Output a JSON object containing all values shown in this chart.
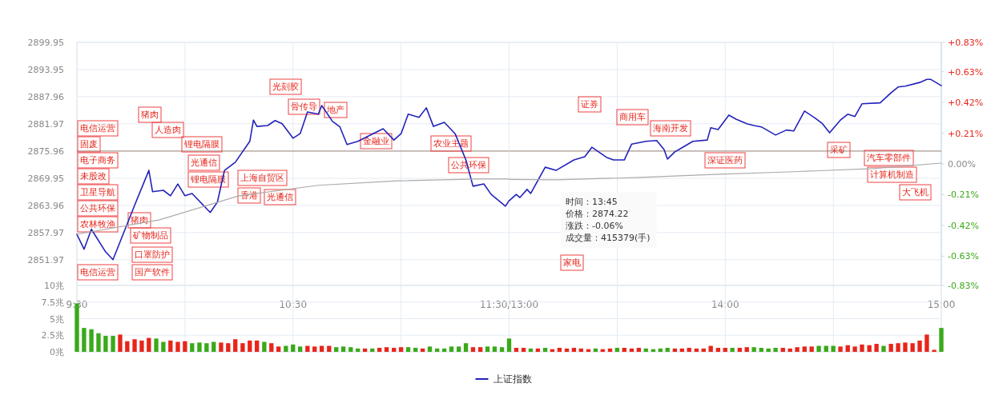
{
  "chart_data": [
    {
      "type": "line",
      "xlim": [
        9.5,
        11.5
      ],
      "xticks": [
        {
          "value": 9.5,
          "label": "9:30"
        },
        {
          "value": 10,
          "label": null
        },
        {
          "value": 10.5,
          "label": "10:30"
        },
        {
          "value": 11,
          "label": null
        },
        {
          "value": 11.5,
          "label": "11:30/13:00"
        }
      ],
      "ylim": [
        2846.3,
        2899.95
      ],
      "yticks": [
        2851.97,
        2857.97,
        2863.96,
        2869.95,
        2875.96,
        2881.97,
        2887.96,
        2893.95,
        2899.95
      ],
      "grid": true,
      "legend": "bottom",
      "series": [
        {
          "name": "上证指数",
          "color": "#2222bb",
          "x": [
            9.5,
            9.533,
            9.567,
            9.633,
            9.667,
            9.767,
            9.833,
            9.85,
            9.9,
            9.933,
            9.967,
            10,
            10.033,
            10.117,
            10.15,
            10.183,
            10.233,
            10.3,
            10.317,
            10.333,
            10.383,
            10.417,
            10.45,
            10.5,
            10.533,
            10.567,
            10.617,
            10.633,
            10.683,
            10.717,
            10.75,
            10.8,
            10.85,
            10.917,
            10.967,
            11,
            11.033,
            11.083,
            11.117,
            11.15,
            11.2,
            11.25,
            11.3,
            11.333,
            11.383,
            11.417,
            11.483,
            11.5
          ],
          "values": [
            2857.6,
            2854.3,
            2858.7,
            2853.7,
            2852.0,
            2864.0,
            2871.7,
            2867.0,
            2867.3,
            2866.1,
            2868.7,
            2866.1,
            2866.6,
            2862.4,
            2864.7,
            2871.7,
            2873.5,
            2878.1,
            2882.8,
            2881.4,
            2881.6,
            2882.7,
            2882.0,
            2878.8,
            2879.8,
            2884.6,
            2884.1,
            2886.0,
            2882.5,
            2881.3,
            2877.4,
            2878.1,
            2879.3,
            2880.9,
            2878.4,
            2879.8,
            2884.1,
            2883.4,
            2885.5,
            2881.4,
            2882.3,
            2879.8,
            2874.0,
            2868.2,
            2868.7,
            2866.4,
            2863.8,
            2865.0
          ]
        },
        {
          "color": "#aaaaaa",
          "x": [
            9.5,
            9.883,
            10.25,
            10.617,
            10.983,
            11.35,
            11.5
          ],
          "values": [
            2857.6,
            2860.8,
            2866.1,
            2868.4,
            2869.4,
            2869.8,
            2869.8
          ]
        }
      ],
      "ref_lines": [
        {
          "axis": "y",
          "value": 2875.96,
          "color": "#a08878"
        }
      ],
      "annotations": [
        "电信运营",
        "固废",
        "电子商务",
        "未股改",
        "卫星导航",
        "公共环保",
        "农林牧渔",
        "口罩防护",
        "国产软件",
        "电信运营",
        "猪肉",
        "人造肉",
        "锂电隔膜",
        "光通信",
        "锂电隔膜",
        "猪肉",
        "矿物制品",
        "上海自贸区",
        "香港",
        "光通信",
        "光刻胶",
        "骨传导",
        "地产",
        "金融业",
        "农业主题",
        "公共环保"
      ]
    },
    {
      "type": "line",
      "xlim": [
        13,
        15
      ],
      "tick_labels": "x",
      "xticks": [
        {
          "value": 13,
          "label": null
        },
        {
          "value": 13.5,
          "label": null
        },
        {
          "value": 14,
          "label": "14:00"
        },
        {
          "value": 14.5,
          "label": null
        },
        {
          "value": 15,
          "label": "15:00"
        }
      ],
      "ylim": [
        2846.3,
        2899.95
      ],
      "yticks": [
        2851.97,
        2857.97,
        2863.96,
        2869.95,
        2875.96,
        2881.97,
        2887.96,
        2893.95,
        2899.95
      ],
      "y2lim": [
        -0.83,
        0.83
      ],
      "y2ticks": [
        {
          "value": -0.83,
          "label": "-0.83%"
        },
        {
          "value": -0.63,
          "label": "-0.63%"
        },
        {
          "value": -0.42,
          "label": "-0.42%"
        },
        {
          "value": -0.21,
          "label": "-0.21%"
        },
        {
          "value": 0,
          "label": "0.00%"
        },
        {
          "value": 0.21,
          "label": "+0.21%"
        },
        {
          "value": 0.42,
          "label": "+0.42%"
        },
        {
          "value": 0.63,
          "label": "+0.63%"
        },
        {
          "value": 0.83,
          "label": "+0.83%"
        }
      ],
      "grid": true,
      "series": [
        {
          "color": "#2222bb",
          "x": [
            13,
            13.033,
            13.05,
            13.083,
            13.1,
            13.167,
            13.217,
            13.3,
            13.35,
            13.383,
            13.45,
            13.483,
            13.533,
            13.567,
            13.633,
            13.683,
            13.717,
            13.733,
            13.767,
            13.8,
            13.85,
            13.917,
            13.933,
            13.967,
            14.017,
            14.05,
            14.1,
            14.133,
            14.167,
            14.233,
            14.283,
            14.317,
            14.367,
            14.417,
            14.45,
            14.483,
            14.533,
            14.567,
            14.6,
            14.633,
            14.717,
            14.767,
            14.8,
            14.833,
            14.9,
            14.933,
            14.95,
            15
          ],
          "values": [
            2865.0,
            2866.4,
            2865.7,
            2867.5,
            2866.6,
            2872.4,
            2871.7,
            2874.0,
            2874.7,
            2876.8,
            2874.6,
            2874.0,
            2874.0,
            2877.5,
            2878.1,
            2878.3,
            2876.3,
            2874.2,
            2875.8,
            2876.7,
            2878.1,
            2878.4,
            2881.1,
            2880.7,
            2883.9,
            2883.0,
            2882.0,
            2881.6,
            2881.3,
            2879.5,
            2880.6,
            2880.4,
            2884.8,
            2883.2,
            2882.0,
            2880.0,
            2882.8,
            2884.1,
            2883.6,
            2886.4,
            2886.6,
            2888.8,
            2890.1,
            2890.3,
            2891.1,
            2891.8,
            2891.8,
            2890.4
          ]
        },
        {
          "color": "#aaaaaa",
          "x": [
            13,
            13.217,
            13.583,
            13.95,
            14.317,
            14.683,
            15
          ],
          "values": [
            2869.7,
            2869.6,
            2870.1,
            2870.8,
            2871.4,
            2872.1,
            2873.3
          ]
        }
      ],
      "ref_lines": [
        {
          "axis": "y",
          "value": 2875.96,
          "color": "#a08878"
        }
      ],
      "annotations": [
        "家电",
        "证券",
        "商用车",
        "海南开发",
        "深证医药",
        "采矿",
        "汽车零部件",
        "计算机制造",
        "大飞机",
        "时间：13:45",
        "价格：2874.22",
        "涨跌：-0.06%",
        "成交量：415379(手)"
      ]
    },
    {
      "type": "bar",
      "xlim": [
        9.5,
        11.5
      ],
      "tick_labels": "y",
      "grid": true,
      "xticks": [
        {
          "value": 9.5,
          "label": null
        },
        {
          "value": 10,
          "label": null
        },
        {
          "value": 10.5,
          "label": null
        },
        {
          "value": 11,
          "label": null
        },
        {
          "value": 11.5,
          "label": null
        }
      ],
      "ylim": [
        0,
        10
      ],
      "yticks": [
        {
          "value": 0,
          "label": "0兆"
        },
        {
          "value": 2.5,
          "label": "2.5兆"
        },
        {
          "value": 5,
          "label": "5兆"
        },
        {
          "value": 7.5,
          "label": "7.5兆"
        },
        {
          "value": 10,
          "label": "10兆"
        }
      ],
      "x": [
        9.5,
        9.533,
        9.567,
        9.6,
        9.633,
        9.667,
        9.7,
        9.733,
        9.767,
        9.8,
        9.833,
        9.867,
        9.9,
        9.933,
        9.967,
        10,
        10.033,
        10.067,
        10.1,
        10.133,
        10.167,
        10.2,
        10.233,
        10.267,
        10.3,
        10.333,
        10.367,
        10.4,
        10.433,
        10.467,
        10.5,
        10.533,
        10.567,
        10.6,
        10.633,
        10.667,
        10.7,
        10.733,
        10.767,
        10.8,
        10.833,
        10.867,
        10.9,
        10.933,
        10.967,
        11,
        11.033,
        11.067,
        11.1,
        11.133,
        11.167,
        11.2,
        11.233,
        11.267,
        11.3,
        11.333,
        11.367,
        11.4,
        11.433,
        11.467
      ],
      "values": [
        7.3,
        3.6,
        3.4,
        2.8,
        2.4,
        2.4,
        2.6,
        1.6,
        1.9,
        1.7,
        2.1,
        2.0,
        1.5,
        1.7,
        1.5,
        1.6,
        1.3,
        1.4,
        1.3,
        1.5,
        1.4,
        1.3,
        1.9,
        1.3,
        1.7,
        1.7,
        1.5,
        1.3,
        0.8,
        0.9,
        1.1,
        0.8,
        0.9,
        0.8,
        0.9,
        0.9,
        0.7,
        0.8,
        0.7,
        0.5,
        0.5,
        0.5,
        0.6,
        0.7,
        0.6,
        0.7,
        0.7,
        0.6,
        0.5,
        0.8,
        0.5,
        0.5,
        0.8,
        0.8,
        1.3,
        0.7,
        0.7,
        0.8,
        0.8,
        0.7
      ],
      "colors": [
        "#3aa91a",
        "#3aa91a",
        "#3aa91a",
        "#3aa91a",
        "#3aa91a",
        "#3aa91a",
        "#e8251b",
        "#e8251b",
        "#e8251b",
        "#e8251b",
        "#e8251b",
        "#3aa91a",
        "#3aa91a",
        "#e8251b",
        "#e8251b",
        "#e8251b",
        "#3aa91a",
        "#3aa91a",
        "#3aa91a",
        "#3aa91a",
        "#e8251b",
        "#e8251b",
        "#e8251b",
        "#e8251b",
        "#e8251b",
        "#e8251b",
        "#3aa91a",
        "#e8251b",
        "#e8251b",
        "#3aa91a",
        "#3aa91a",
        "#3aa91a",
        "#e8251b",
        "#e8251b",
        "#e8251b",
        "#e8251b",
        "#3aa91a",
        "#3aa91a",
        "#3aa91a",
        "#3aa91a",
        "#e8251b",
        "#3aa91a",
        "#e8251b",
        "#e8251b",
        "#e8251b",
        "#e8251b",
        "#3aa91a",
        "#3aa91a",
        "#e8251b",
        "#3aa91a",
        "#3aa91a",
        "#3aa91a",
        "#3aa91a",
        "#3aa91a",
        "#3aa91a",
        "#e8251b",
        "#e8251b",
        "#3aa91a",
        "#3aa91a",
        "#3aa91a"
      ]
    },
    {
      "type": "bar",
      "xlim": [
        13,
        15
      ],
      "tick_labels": false,
      "grid": true,
      "xticks": [
        {
          "value": 13,
          "label": null
        },
        {
          "value": 13.5,
          "label": null
        },
        {
          "value": 14,
          "label": null
        },
        {
          "value": 14.5,
          "label": null
        },
        {
          "value": 15,
          "label": null
        }
      ],
      "ylim": [
        0,
        10
      ],
      "yticks": [
        {
          "value": 0,
          "label": null
        },
        {
          "value": 2.5,
          "label": null
        },
        {
          "value": 5,
          "label": null
        },
        {
          "value": 7.5,
          "label": null
        },
        {
          "value": 10,
          "label": null
        }
      ],
      "x": [
        13,
        13.033,
        13.067,
        13.1,
        13.133,
        13.167,
        13.2,
        13.233,
        13.267,
        13.3,
        13.333,
        13.367,
        13.4,
        13.433,
        13.467,
        13.5,
        13.533,
        13.567,
        13.6,
        13.633,
        13.667,
        13.7,
        13.733,
        13.767,
        13.8,
        13.833,
        13.867,
        13.9,
        13.933,
        13.967,
        14,
        14.033,
        14.067,
        14.1,
        14.133,
        14.167,
        14.2,
        14.233,
        14.267,
        14.3,
        14.333,
        14.367,
        14.4,
        14.433,
        14.467,
        14.5,
        14.533,
        14.567,
        14.6,
        14.633,
        14.667,
        14.7,
        14.733,
        14.767,
        14.8,
        14.833,
        14.867,
        14.9,
        14.933,
        14.967,
        15
      ],
      "values": [
        2.0,
        0.6,
        0.6,
        0.5,
        0.5,
        0.6,
        0.4,
        0.6,
        0.5,
        0.6,
        0.5,
        0.4,
        0.5,
        0.4,
        0.5,
        0.6,
        0.6,
        0.5,
        0.6,
        0.5,
        0.4,
        0.5,
        0.6,
        0.5,
        0.5,
        0.6,
        0.5,
        0.5,
        0.9,
        0.6,
        0.6,
        0.6,
        0.6,
        0.7,
        0.7,
        0.6,
        0.5,
        0.6,
        0.6,
        0.5,
        0.7,
        0.8,
        0.8,
        0.9,
        0.9,
        0.9,
        0.8,
        1.0,
        0.8,
        1.1,
        1.0,
        1.2,
        0.9,
        1.2,
        1.3,
        1.4,
        1.3,
        1.7,
        2.6,
        0.3,
        3.6
      ],
      "colors": [
        "#3aa91a",
        "#e8251b",
        "#e8251b",
        "#3aa91a",
        "#e8251b",
        "#3aa91a",
        "#e8251b",
        "#e8251b",
        "#e8251b",
        "#e8251b",
        "#e8251b",
        "#e8251b",
        "#3aa91a",
        "#e8251b",
        "#e8251b",
        "#3aa91a",
        "#e8251b",
        "#e8251b",
        "#e8251b",
        "#3aa91a",
        "#3aa91a",
        "#3aa91a",
        "#3aa91a",
        "#e8251b",
        "#e8251b",
        "#e8251b",
        "#e8251b",
        "#e8251b",
        "#e8251b",
        "#e8251b",
        "#e8251b",
        "#3aa91a",
        "#e8251b",
        "#e8251b",
        "#3aa91a",
        "#3aa91a",
        "#3aa91a",
        "#3aa91a",
        "#e8251b",
        "#e8251b",
        "#e8251b",
        "#e8251b",
        "#e8251b",
        "#3aa91a",
        "#3aa91a",
        "#3aa91a",
        "#e8251b",
        "#e8251b",
        "#e8251b",
        "#e8251b",
        "#e8251b",
        "#e8251b",
        "#3aa91a",
        "#e8251b",
        "#e8251b",
        "#e8251b",
        "#e8251b",
        "#e8251b",
        "#e8251b",
        "#e8251b",
        "#3aa91a"
      ]
    }
  ]
}
